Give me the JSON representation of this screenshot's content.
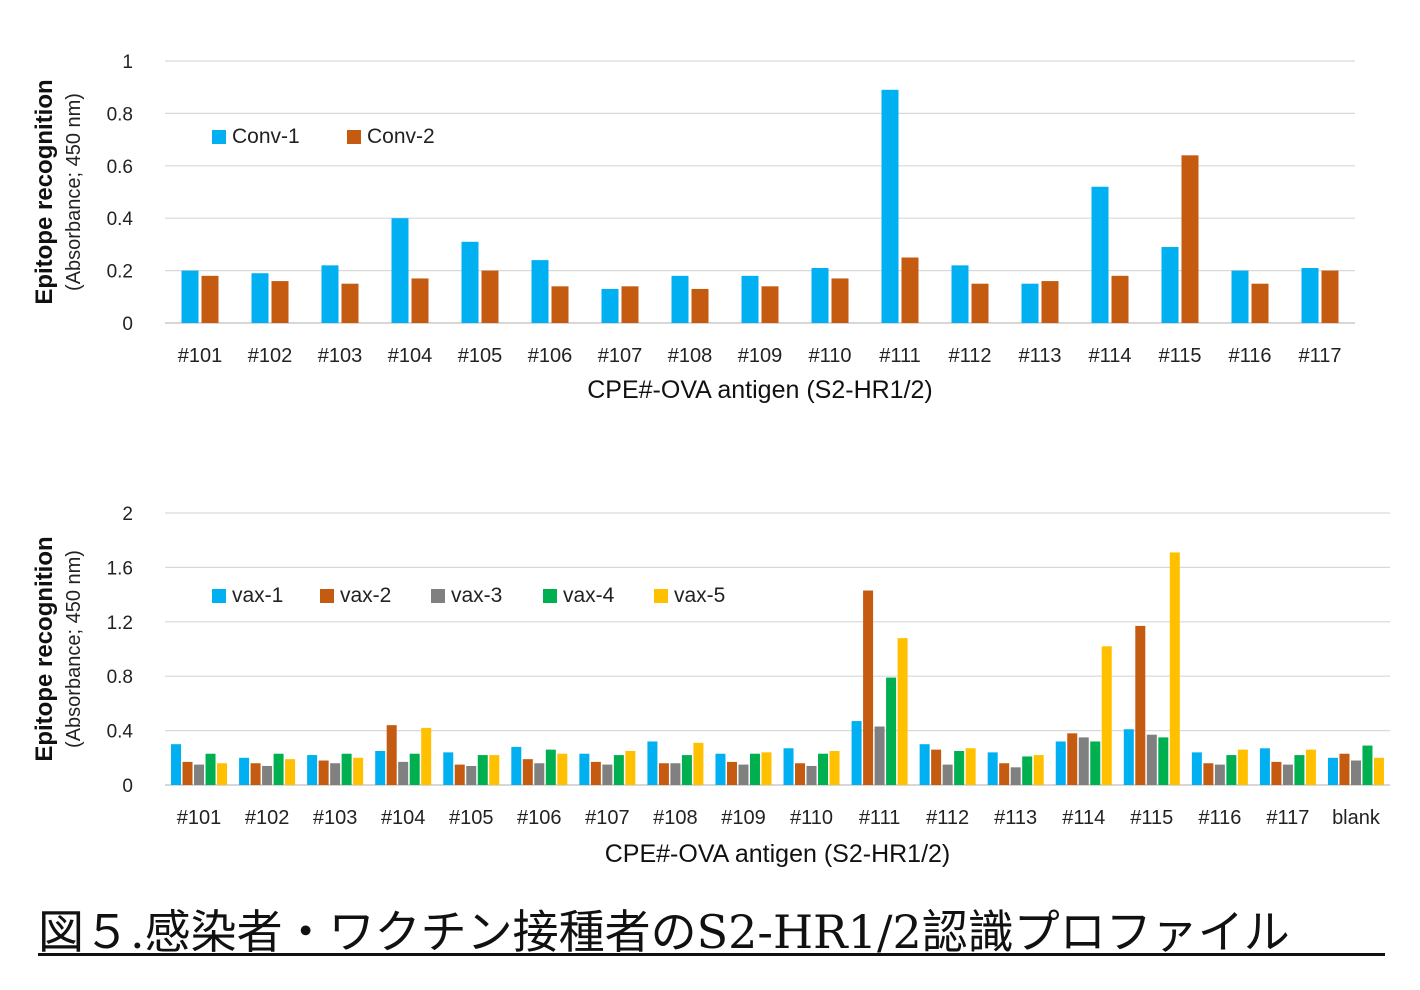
{
  "caption": "図５.感染者・ワクチン接種者のS2-HR1/2認識プロファイル",
  "chart_data": [
    {
      "type": "bar",
      "categories": [
        "#101",
        "#102",
        "#103",
        "#104",
        "#105",
        "#106",
        "#107",
        "#108",
        "#109",
        "#110",
        "#111",
        "#112",
        "#113",
        "#114",
        "#115",
        "#116",
        "#117"
      ],
      "series": [
        {
          "name": "Conv-1",
          "color": "#00B0F0",
          "values": [
            0.2,
            0.19,
            0.22,
            0.4,
            0.31,
            0.24,
            0.13,
            0.18,
            0.18,
            0.21,
            0.89,
            0.22,
            0.15,
            0.52,
            0.29,
            0.2,
            0.21
          ]
        },
        {
          "name": "Conv-2",
          "color": "#C55A11",
          "values": [
            0.18,
            0.16,
            0.15,
            0.17,
            0.2,
            0.14,
            0.14,
            0.13,
            0.14,
            0.17,
            0.25,
            0.15,
            0.16,
            0.18,
            0.64,
            0.15,
            0.2
          ]
        }
      ],
      "ylabel": "Epitope recognition",
      "ylabel_sub": "(Absorbance; 450 nm)",
      "xlabel": "CPE#-OVA antigen (S2-HR1/2)",
      "ylim": [
        0,
        1
      ],
      "yticks": [
        "0",
        "0.2",
        "0.4",
        "0.6",
        "0.8",
        "1"
      ],
      "grid": true,
      "legend": "top-left"
    },
    {
      "type": "bar",
      "categories": [
        "#101",
        "#102",
        "#103",
        "#104",
        "#105",
        "#106",
        "#107",
        "#108",
        "#109",
        "#110",
        "#111",
        "#112",
        "#113",
        "#114",
        "#115",
        "#116",
        "#117",
        "blank"
      ],
      "series": [
        {
          "name": "vax-1",
          "color": "#00B0F0",
          "values": [
            0.3,
            0.2,
            0.22,
            0.25,
            0.24,
            0.28,
            0.23,
            0.32,
            0.23,
            0.27,
            0.47,
            0.3,
            0.24,
            0.32,
            0.41,
            0.24,
            0.27,
            0.2
          ]
        },
        {
          "name": "vax-2",
          "color": "#C55A11",
          "values": [
            0.17,
            0.16,
            0.18,
            0.44,
            0.15,
            0.19,
            0.17,
            0.16,
            0.17,
            0.16,
            1.43,
            0.26,
            0.16,
            0.38,
            1.17,
            0.16,
            0.17,
            0.23
          ]
        },
        {
          "name": "vax-3",
          "color": "#808080",
          "values": [
            0.15,
            0.14,
            0.16,
            0.17,
            0.14,
            0.16,
            0.15,
            0.16,
            0.15,
            0.14,
            0.43,
            0.15,
            0.13,
            0.35,
            0.37,
            0.15,
            0.15,
            0.18
          ]
        },
        {
          "name": "vax-4",
          "color": "#00B050",
          "values": [
            0.23,
            0.23,
            0.23,
            0.23,
            0.22,
            0.26,
            0.22,
            0.22,
            0.23,
            0.23,
            0.79,
            0.25,
            0.21,
            0.32,
            0.35,
            0.22,
            0.22,
            0.29
          ]
        },
        {
          "name": "vax-5",
          "color": "#FFC000",
          "values": [
            0.16,
            0.19,
            0.2,
            0.42,
            0.22,
            0.23,
            0.25,
            0.31,
            0.24,
            0.25,
            1.08,
            0.27,
            0.22,
            1.02,
            1.71,
            0.26,
            0.26,
            0.2
          ]
        }
      ],
      "ylabel": "Epitope recognition",
      "ylabel_sub": "(Absorbance; 450 nm)",
      "xlabel": "CPE#-OVA antigen (S2-HR1/2)",
      "ylim": [
        0,
        2
      ],
      "yticks": [
        "0",
        "0.4",
        "0.8",
        "1.2",
        "1.6",
        "2"
      ],
      "grid": true,
      "legend": "top-left"
    }
  ]
}
